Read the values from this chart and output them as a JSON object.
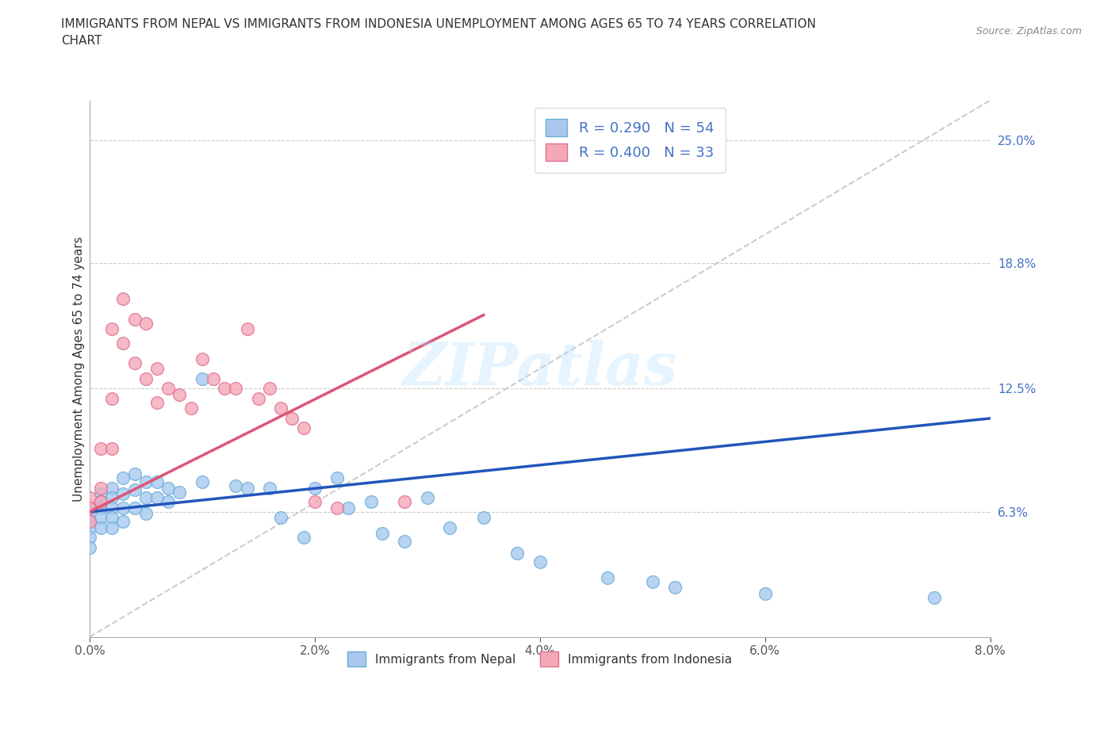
{
  "title": "IMMIGRANTS FROM NEPAL VS IMMIGRANTS FROM INDONESIA UNEMPLOYMENT AMONG AGES 65 TO 74 YEARS CORRELATION\nCHART",
  "source_text": "Source: ZipAtlas.com",
  "xlabel": "",
  "ylabel": "Unemployment Among Ages 65 to 74 years",
  "xlim": [
    0.0,
    0.08
  ],
  "ylim": [
    0.0,
    0.27
  ],
  "xticks": [
    0.0,
    0.02,
    0.04,
    0.06,
    0.08
  ],
  "xticklabels": [
    "0.0%",
    "2.0%",
    "4.0%",
    "6.0%",
    "8.0%"
  ],
  "ytick_right_labels": [
    "6.3%",
    "12.5%",
    "18.8%",
    "25.0%"
  ],
  "ytick_right_values": [
    0.063,
    0.125,
    0.188,
    0.25
  ],
  "nepal_color": "#a8c8f0",
  "nepal_edge_color": "#6aaed6",
  "indonesia_color": "#f4a8b8",
  "indonesia_edge_color": "#e07090",
  "nepal_R": 0.29,
  "nepal_N": 54,
  "indonesia_R": 0.4,
  "indonesia_N": 33,
  "nepal_line_color": "#2255bb",
  "indonesia_line_color": "#dd5577",
  "trend_line_color": "#cccccc",
  "background_color": "#ffffff",
  "watermark": "ZIPatlas",
  "nepal_x": [
    0.0,
    0.0,
    0.0,
    0.0,
    0.0,
    0.0,
    0.001,
    0.001,
    0.001,
    0.001,
    0.001,
    0.002,
    0.002,
    0.002,
    0.002,
    0.002,
    0.003,
    0.003,
    0.003,
    0.003,
    0.004,
    0.004,
    0.004,
    0.005,
    0.005,
    0.005,
    0.006,
    0.006,
    0.007,
    0.007,
    0.008,
    0.01,
    0.01,
    0.013,
    0.014,
    0.016,
    0.017,
    0.019,
    0.02,
    0.022,
    0.023,
    0.025,
    0.026,
    0.028,
    0.03,
    0.032,
    0.035,
    0.038,
    0.04,
    0.046,
    0.05,
    0.052,
    0.06,
    0.075
  ],
  "nepal_y": [
    0.065,
    0.062,
    0.058,
    0.055,
    0.05,
    0.045,
    0.072,
    0.068,
    0.065,
    0.06,
    0.055,
    0.075,
    0.07,
    0.065,
    0.06,
    0.055,
    0.08,
    0.072,
    0.065,
    0.058,
    0.082,
    0.074,
    0.065,
    0.078,
    0.07,
    0.062,
    0.078,
    0.07,
    0.075,
    0.068,
    0.073,
    0.13,
    0.078,
    0.076,
    0.075,
    0.075,
    0.06,
    0.05,
    0.075,
    0.08,
    0.065,
    0.068,
    0.052,
    0.048,
    0.07,
    0.055,
    0.06,
    0.042,
    0.038,
    0.03,
    0.028,
    0.025,
    0.022,
    0.02
  ],
  "indonesia_x": [
    0.0,
    0.0,
    0.0,
    0.001,
    0.001,
    0.001,
    0.002,
    0.002,
    0.002,
    0.003,
    0.003,
    0.004,
    0.004,
    0.005,
    0.005,
    0.006,
    0.006,
    0.007,
    0.008,
    0.009,
    0.01,
    0.011,
    0.012,
    0.013,
    0.014,
    0.015,
    0.016,
    0.017,
    0.018,
    0.019,
    0.02,
    0.022,
    0.028
  ],
  "indonesia_y": [
    0.07,
    0.065,
    0.058,
    0.095,
    0.075,
    0.068,
    0.155,
    0.12,
    0.095,
    0.17,
    0.148,
    0.16,
    0.138,
    0.158,
    0.13,
    0.135,
    0.118,
    0.125,
    0.122,
    0.115,
    0.14,
    0.13,
    0.125,
    0.125,
    0.155,
    0.12,
    0.125,
    0.115,
    0.11,
    0.105,
    0.068,
    0.065,
    0.068
  ]
}
